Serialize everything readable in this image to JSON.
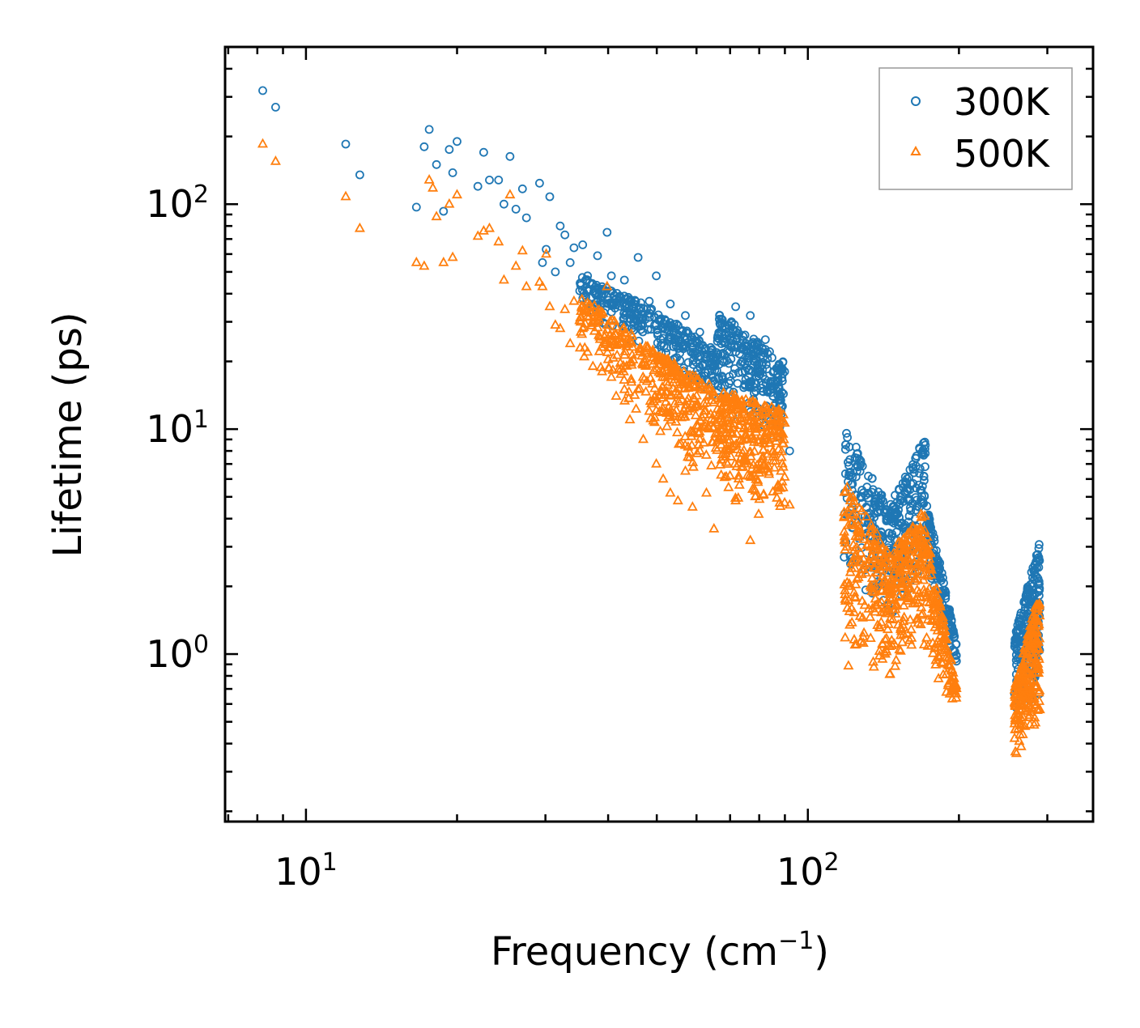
{
  "chart_data": {
    "type": "scatter",
    "title": "",
    "xlabel": "Frequency (cm",
    "xlabel_sup": "−1",
    "xlabel_close": ")",
    "ylabel": "Lifetime (ps)",
    "xscale": "log",
    "yscale": "log",
    "xlim": [
      6.9,
      370
    ],
    "ylim": [
      0.18,
      500
    ],
    "x_ticks": [
      {
        "value": 10,
        "base": "10",
        "exp": "1"
      },
      {
        "value": 100,
        "base": "10",
        "exp": "2"
      }
    ],
    "y_ticks": [
      {
        "value": 1,
        "base": "10",
        "exp": "0"
      },
      {
        "value": 10,
        "base": "10",
        "exp": "1"
      },
      {
        "value": 100,
        "base": "10",
        "exp": "2"
      }
    ],
    "legend_position": "top-right",
    "series": [
      {
        "name": "300K",
        "marker": "circle",
        "color": "#1f77b4",
        "points": [
          [
            8.2,
            320
          ],
          [
            8.7,
            270
          ],
          [
            12.0,
            185
          ],
          [
            12.8,
            135
          ],
          [
            16.6,
            97
          ],
          [
            17.2,
            180
          ],
          [
            17.6,
            215
          ],
          [
            18.2,
            150
          ],
          [
            18.8,
            93
          ],
          [
            19.3,
            175
          ],
          [
            19.6,
            138
          ],
          [
            20.0,
            190
          ],
          [
            22.0,
            120
          ],
          [
            22.6,
            170
          ],
          [
            23.2,
            128
          ],
          [
            24.2,
            128
          ],
          [
            24.8,
            100
          ],
          [
            25.5,
            163
          ],
          [
            26.2,
            95
          ],
          [
            27.0,
            117
          ],
          [
            27.5,
            87
          ],
          [
            29.2,
            124
          ],
          [
            29.6,
            55
          ],
          [
            30.1,
            63
          ],
          [
            30.6,
            108
          ],
          [
            31.4,
            50
          ],
          [
            32.1,
            80
          ],
          [
            32.8,
            73
          ],
          [
            33.6,
            55
          ],
          [
            34.2,
            64
          ],
          [
            35.6,
            66
          ],
          [
            36.4,
            48
          ],
          [
            37.3,
            44
          ],
          [
            38.1,
            59
          ],
          [
            38.9,
            40
          ],
          [
            39.8,
            75
          ],
          [
            40.6,
            48
          ],
          [
            41.5,
            38
          ],
          [
            43.1,
            46
          ],
          [
            44.2,
            33
          ],
          [
            45.9,
            58
          ],
          [
            47.0,
            31
          ],
          [
            48.3,
            37
          ],
          [
            49.9,
            48
          ],
          [
            51.5,
            28
          ],
          [
            53.2,
            36
          ],
          [
            55.1,
            25
          ],
          [
            57.0,
            32
          ],
          [
            58.9,
            23
          ],
          [
            60.9,
            27
          ],
          [
            62.8,
            21
          ],
          [
            65.0,
            19
          ],
          [
            67.2,
            24
          ],
          [
            69.5,
            27
          ],
          [
            71.8,
            35
          ],
          [
            74.2,
            20
          ],
          [
            76.8,
            32
          ],
          [
            79.5,
            18
          ],
          [
            82.3,
            25
          ],
          [
            85.2,
            14
          ],
          [
            88.4,
            12
          ],
          [
            92.0,
            8
          ]
        ],
        "clusters": [
          {
            "x": [
              35,
              50
            ],
            "y_upper": [
              48,
              34
            ],
            "y_lower": [
              34,
              20
            ],
            "n": 160
          },
          {
            "x": [
              50,
              66
            ],
            "y_upper": [
              34,
              22
            ],
            "y_lower": [
              20,
              13
            ],
            "n": 160
          },
          {
            "x": [
              66,
              90
            ],
            "y_upper": [
              34,
              20
            ],
            "y_lower": [
              12,
              8
            ],
            "n": 260
          },
          {
            "x": [
              118,
              145
            ],
            "y_upper": [
              10.5,
              4.5
            ],
            "y_lower": [
              2.2,
              1.5
            ],
            "n": 170
          },
          {
            "x": [
              145,
              172
            ],
            "y_upper": [
              4.5,
              9.5
            ],
            "y_lower": [
              1.4,
              2.2
            ],
            "n": 170
          },
          {
            "x": [
              172,
              198
            ],
            "y_upper": [
              5.0,
              1.1
            ],
            "y_lower": [
              2.0,
              0.85
            ],
            "n": 140
          },
          {
            "x": [
              258,
              290
            ],
            "y_upper": [
              1.2,
              3.2
            ],
            "y_lower": [
              0.55,
              0.6
            ],
            "n": 210
          }
        ]
      },
      {
        "name": "500K",
        "marker": "triangle",
        "color": "#ff7f0e",
        "points": [
          [
            8.2,
            185
          ],
          [
            8.7,
            155
          ],
          [
            12.0,
            108
          ],
          [
            12.8,
            78
          ],
          [
            16.6,
            55
          ],
          [
            17.2,
            53
          ],
          [
            17.6,
            128
          ],
          [
            17.9,
            118
          ],
          [
            18.2,
            88
          ],
          [
            18.8,
            55
          ],
          [
            19.3,
            100
          ],
          [
            19.6,
            58
          ],
          [
            20.0,
            110
          ],
          [
            22.0,
            72
          ],
          [
            22.6,
            76
          ],
          [
            23.2,
            78
          ],
          [
            24.2,
            68
          ],
          [
            24.8,
            46
          ],
          [
            25.5,
            110
          ],
          [
            26.2,
            53
          ],
          [
            27.0,
            62
          ],
          [
            27.5,
            43
          ],
          [
            29.2,
            45
          ],
          [
            29.6,
            43
          ],
          [
            30.1,
            60
          ],
          [
            30.6,
            35
          ],
          [
            31.4,
            29
          ],
          [
            32.1,
            28
          ],
          [
            32.8,
            34
          ],
          [
            33.6,
            24
          ],
          [
            34.2,
            37
          ],
          [
            35.6,
            28
          ],
          [
            36.4,
            22
          ],
          [
            37.3,
            19
          ],
          [
            38.1,
            30
          ],
          [
            38.9,
            18
          ],
          [
            39.8,
            43
          ],
          [
            40.6,
            17
          ],
          [
            41.5,
            14
          ],
          [
            43.1,
            15
          ],
          [
            44.2,
            11
          ],
          [
            45.9,
            15
          ],
          [
            47.0,
            9
          ],
          [
            48.3,
            12
          ],
          [
            49.9,
            7
          ],
          [
            51.5,
            6
          ],
          [
            53.2,
            5.2
          ],
          [
            55.1,
            4.8
          ],
          [
            57.0,
            6.5
          ],
          [
            58.9,
            4.5
          ],
          [
            60.9,
            9
          ],
          [
            62.8,
            5.2
          ],
          [
            65.0,
            3.6
          ],
          [
            67.2,
            8.5
          ],
          [
            69.5,
            5.5
          ],
          [
            71.8,
            4.8
          ],
          [
            74.2,
            6.8
          ],
          [
            76.8,
            3.2
          ],
          [
            79.5,
            5.8
          ],
          [
            82.3,
            12
          ],
          [
            85.2,
            8
          ],
          [
            88.4,
            6.5
          ],
          [
            92.0,
            4.6
          ]
        ],
        "clusters": [
          {
            "x": [
              35,
              50
            ],
            "y_upper": [
              40,
              22
            ],
            "y_lower": [
              18,
              10
            ],
            "n": 170
          },
          {
            "x": [
              50,
              66
            ],
            "y_upper": [
              22,
              15
            ],
            "y_lower": [
              9,
              5.0
            ],
            "n": 200
          },
          {
            "x": [
              66,
              90
            ],
            "y_upper": [
              15,
              12
            ],
            "y_lower": [
              5.0,
              3.5
            ],
            "n": 300
          },
          {
            "x": [
              118,
              145
            ],
            "y_upper": [
              6.0,
              2.8
            ],
            "y_lower": [
              0.8,
              0.75
            ],
            "n": 200
          },
          {
            "x": [
              145,
              172
            ],
            "y_upper": [
              2.8,
              4.5
            ],
            "y_lower": [
              0.75,
              1.0
            ],
            "n": 200
          },
          {
            "x": [
              172,
              198
            ],
            "y_upper": [
              3.5,
              0.7
            ],
            "y_lower": [
              0.9,
              0.55
            ],
            "n": 150
          },
          {
            "x": [
              258,
              290
            ],
            "y_upper": [
              0.7,
              2.0
            ],
            "y_lower": [
              0.35,
              0.4
            ],
            "n": 240
          }
        ]
      }
    ]
  }
}
